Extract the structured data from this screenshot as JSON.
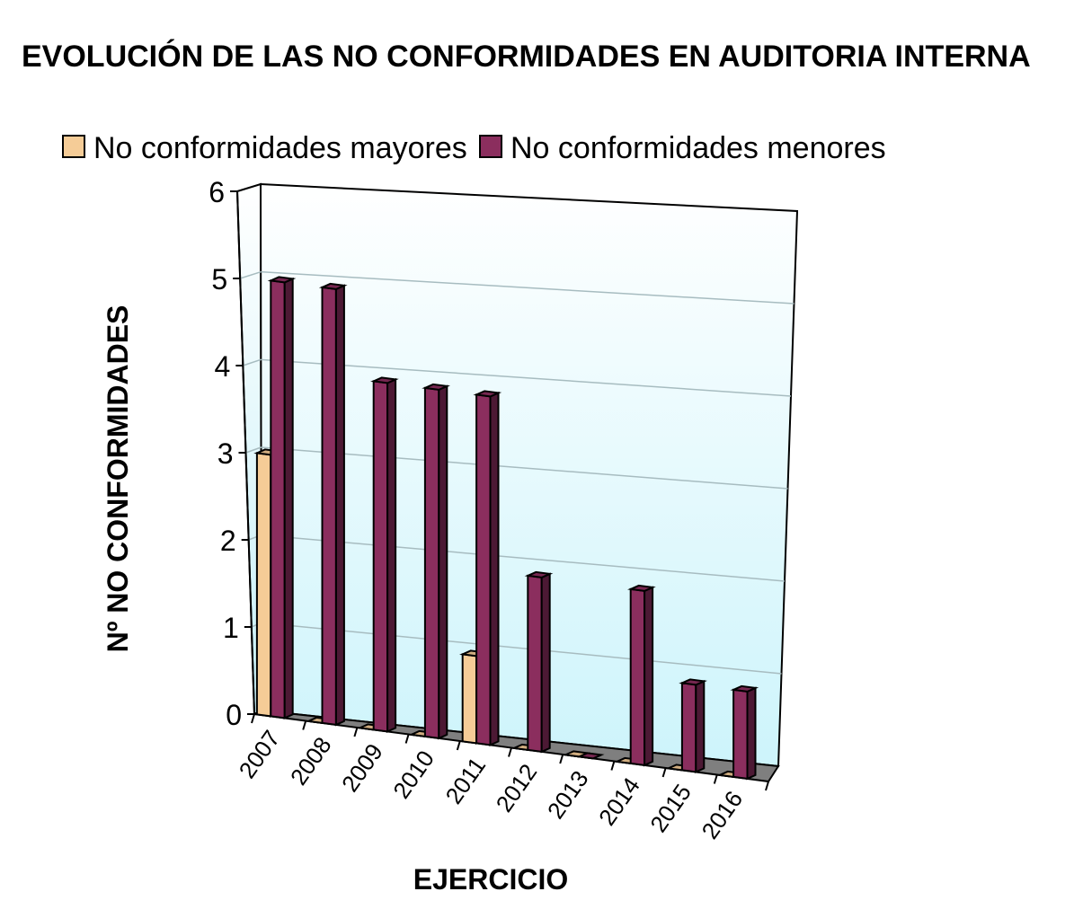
{
  "chart_data": {
    "type": "bar",
    "title": "EVOLUCIÓN DE LAS NO CONFORMIDADES EN AUDITORIA INTERNA",
    "xlabel": "EJERCICIO",
    "ylabel": "Nº NO CONFORMIDADES",
    "categories": [
      "2007",
      "2008",
      "2009",
      "2010",
      "2011",
      "2012",
      "2013",
      "2014",
      "2015",
      "2016"
    ],
    "series": [
      {
        "name": "No conformidades mayores",
        "color": "#F5CC97",
        "values": [
          3,
          0,
          0,
          0,
          1,
          0,
          0,
          0,
          0,
          0
        ]
      },
      {
        "name": "No conformidades menores",
        "color": "#8B2E5E",
        "values": [
          5,
          5,
          4,
          4,
          4,
          2,
          0,
          2,
          1,
          1
        ]
      }
    ],
    "yticks": [
      "0",
      "1",
      "2",
      "3",
      "4",
      "5",
      "6"
    ],
    "ylim": [
      0,
      6
    ],
    "grid": true,
    "legend": "top",
    "background": "3d-perspective-cyan-gradient"
  }
}
